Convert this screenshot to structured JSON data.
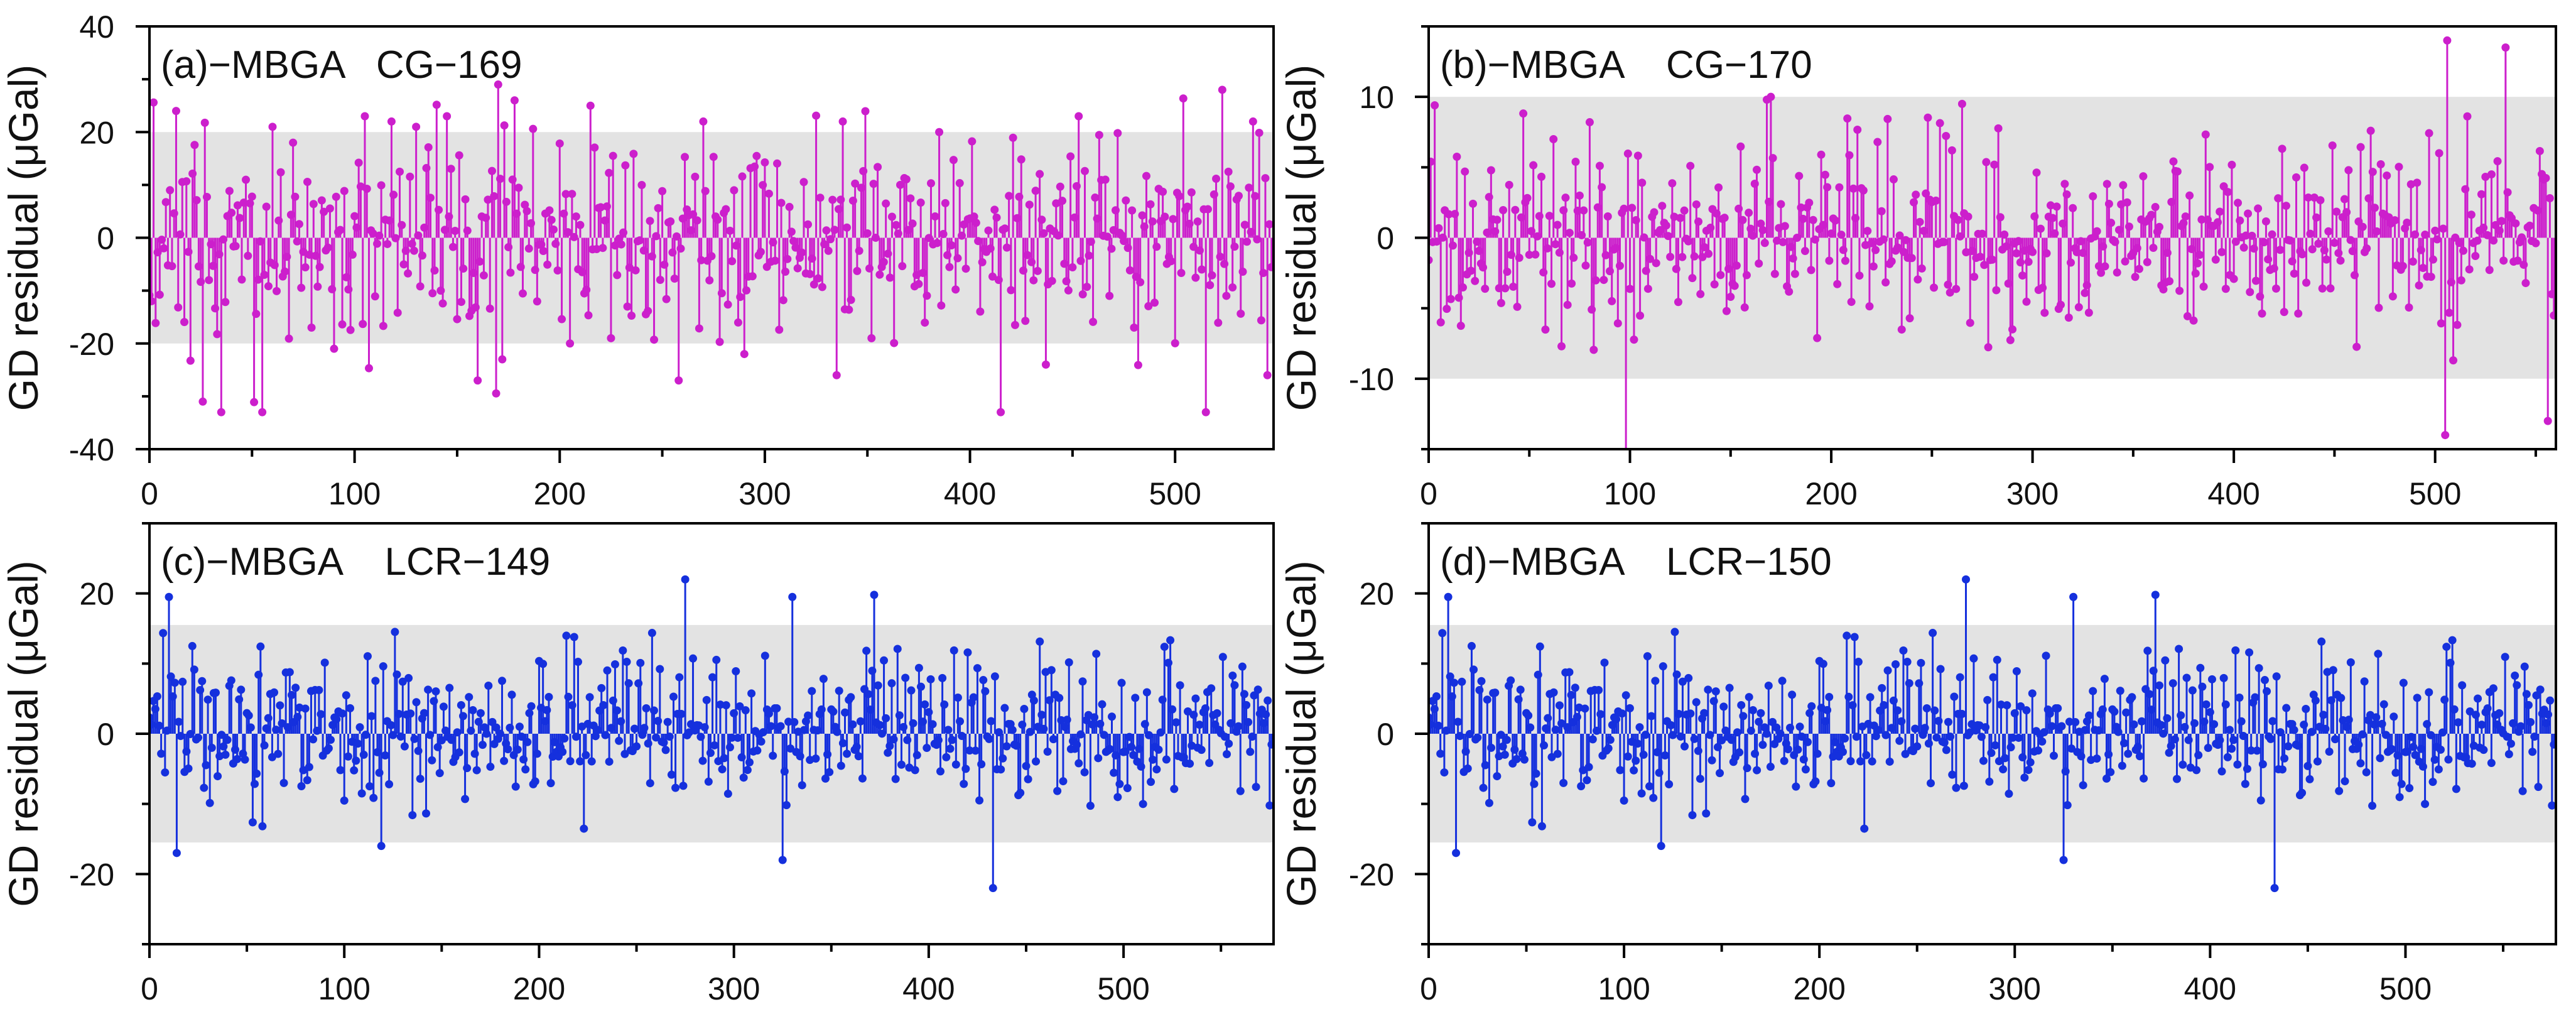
{
  "figure": {
    "description_units": "µGal",
    "x_tick_labels": [
      "0",
      "100",
      "200",
      "300",
      "400",
      "500"
    ]
  },
  "colors": {
    "magenta": "#cc1fcc",
    "blue": "#1530dd",
    "band": "#e3e3e3",
    "axis": "#000000"
  },
  "chart_data": [
    {
      "id": "a",
      "type": "stem",
      "title": "(a)−MBGA   CG−169",
      "ylabel": "GD residual  (μGal)",
      "xlabel": "",
      "color": "magenta",
      "n_points": 548,
      "xlim": [
        0,
        548
      ],
      "ylim": [
        -40,
        40
      ],
      "y_ticks": [
        -40,
        -20,
        0,
        20,
        40
      ],
      "y_tick_labels": [
        "-40",
        "-20",
        "0",
        "20",
        "40"
      ],
      "x_ticks": [
        0,
        100,
        200,
        300,
        400,
        500
      ],
      "band": [
        -20,
        20
      ],
      "grid": false,
      "seed": 169,
      "scale": 9,
      "clip": [
        -34,
        30
      ],
      "points": [
        [
          1,
          -12
        ],
        [
          10,
          9
        ],
        [
          13,
          24
        ],
        [
          26,
          -31
        ],
        [
          35,
          -33
        ],
        [
          55,
          -33
        ],
        [
          60,
          21
        ],
        [
          70,
          18
        ],
        [
          90,
          -21
        ],
        [
          105,
          23
        ],
        [
          118,
          22
        ],
        [
          130,
          21
        ],
        [
          145,
          23
        ],
        [
          160,
          -27
        ],
        [
          170,
          29
        ],
        [
          172,
          -23
        ],
        [
          178,
          26
        ],
        [
          205,
          -20
        ],
        [
          215,
          25
        ],
        [
          225,
          -19
        ],
        [
          258,
          -27
        ],
        [
          270,
          22
        ],
        [
          290,
          -22
        ],
        [
          335,
          -26
        ],
        [
          338,
          22
        ],
        [
          385,
          20
        ],
        [
          415,
          -33
        ],
        [
          437,
          -24
        ],
        [
          453,
          23
        ],
        [
          480,
          -17
        ],
        [
          515,
          -33
        ],
        [
          523,
          28
        ],
        [
          538,
          22
        ],
        [
          545,
          -26
        ]
      ]
    },
    {
      "id": "b",
      "type": "stem",
      "title": "(b)−MBGA    CG−170",
      "ylabel": "GD residual  (μGal)",
      "xlabel": "",
      "color": "magenta",
      "n_points": 560,
      "xlim": [
        0,
        560
      ],
      "ylim": [
        -15,
        15
      ],
      "y_ticks": [
        -10,
        0,
        10
      ],
      "y_tick_labels": [
        "-10",
        "0",
        "10"
      ],
      "x_ticks": [
        0,
        100,
        200,
        300,
        400,
        500
      ],
      "band": [
        -10,
        10
      ],
      "grid": false,
      "seed": 170,
      "scale": 3.2,
      "clip": [
        -9,
        9
      ],
      "points": [
        [
          3,
          9.4
        ],
        [
          6,
          -6
        ],
        [
          80,
          8.2
        ],
        [
          98,
          -16
        ],
        [
          168,
          9.8
        ],
        [
          170,
          10
        ],
        [
          265,
          9.5
        ],
        [
          290,
          -6.5
        ],
        [
          505,
          -14
        ],
        [
          506,
          14
        ],
        [
          535,
          13.5
        ],
        [
          556,
          -13
        ],
        [
          558,
          -4
        ]
      ]
    },
    {
      "id": "c",
      "type": "stem",
      "title": "(c)−MBGA    LCR−149",
      "ylabel": "GD residual  (μGal)",
      "xlabel": "",
      "color": "blue",
      "n_points": 577,
      "xlim": [
        0,
        577
      ],
      "ylim": [
        -30,
        30
      ],
      "y_ticks": [
        -20,
        0,
        20
      ],
      "y_tick_labels": [
        "-20",
        "0",
        "20"
      ],
      "x_ticks": [
        0,
        100,
        200,
        300,
        400,
        500
      ],
      "band": [
        -15.5,
        15.5
      ],
      "grid": false,
      "seed": 149,
      "scale": 5.5,
      "clip": [
        -15,
        15
      ],
      "points": [
        [
          10,
          19.5
        ],
        [
          14,
          -17
        ],
        [
          275,
          22
        ],
        [
          325,
          -18
        ],
        [
          330,
          19.5
        ],
        [
          372,
          19.8
        ],
        [
          433,
          -22
        ],
        [
          119,
          -16
        ]
      ]
    },
    {
      "id": "d",
      "type": "stem",
      "title": "(d)−MBGA    LCR−150",
      "ylabel": "GD residual  (μGal)",
      "xlabel": "",
      "color": "blue",
      "n_points": 577,
      "xlim": [
        0,
        577
      ],
      "ylim": [
        -30,
        30
      ],
      "y_ticks": [
        -20,
        0,
        20
      ],
      "y_tick_labels": [
        "-20",
        "0",
        "20"
      ],
      "x_ticks": [
        0,
        100,
        200,
        300,
        400,
        500
      ],
      "band": [
        -15.5,
        15.5
      ],
      "grid": false,
      "seed": 149,
      "scale": 5.5,
      "clip": [
        -15,
        15
      ],
      "points": [
        [
          10,
          19.5
        ],
        [
          14,
          -17
        ],
        [
          275,
          22
        ],
        [
          325,
          -18
        ],
        [
          330,
          19.5
        ],
        [
          372,
          19.8
        ],
        [
          433,
          -22
        ],
        [
          119,
          -16
        ]
      ]
    }
  ]
}
